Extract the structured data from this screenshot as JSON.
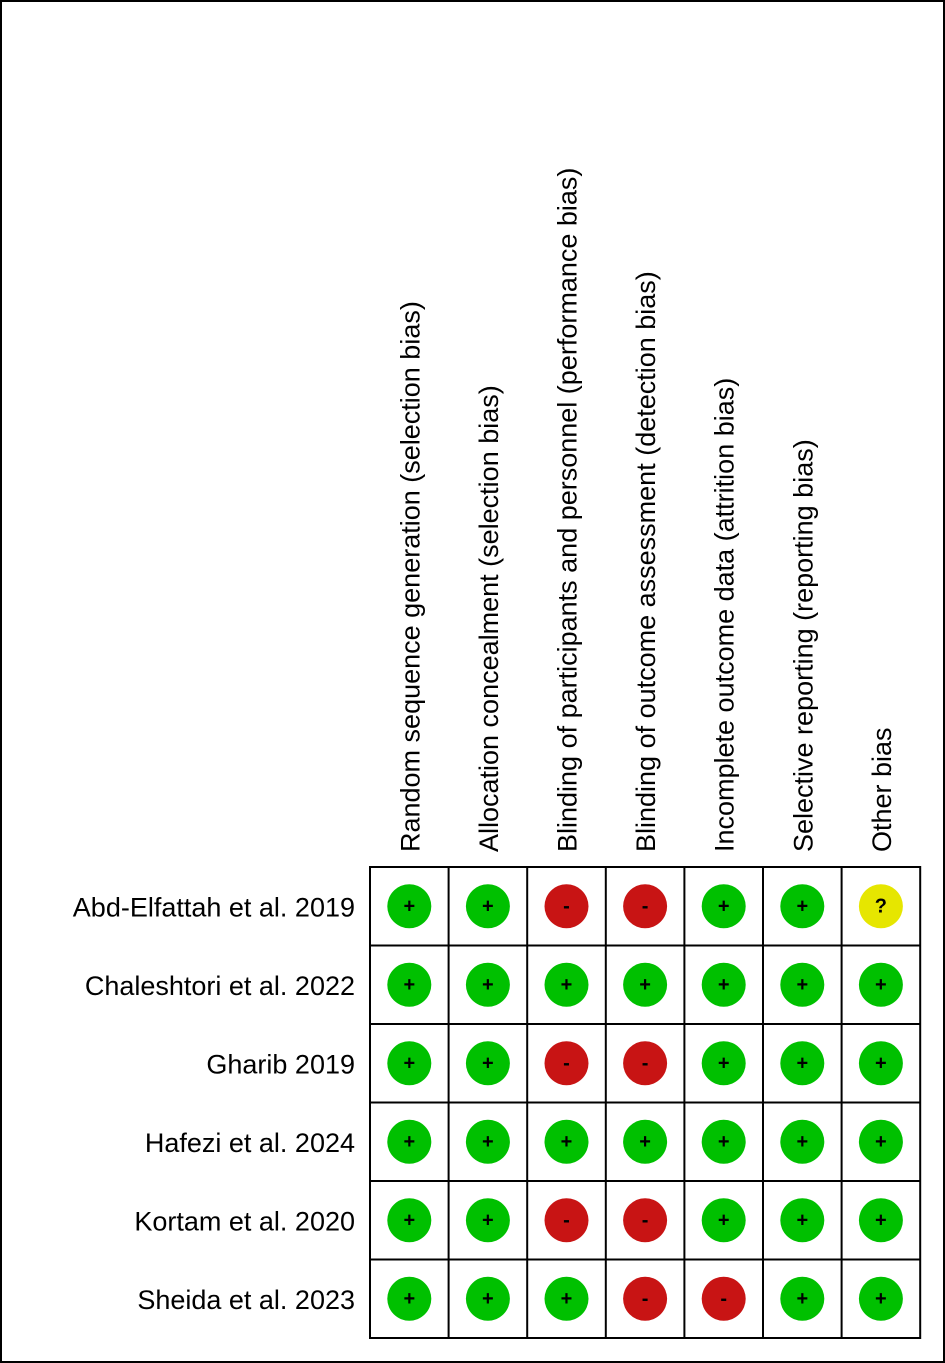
{
  "columns": [
    "Random sequence generation (selection bias)",
    "Allocation concealment (selection bias)",
    "Blinding of participants and personnel (performance bias)",
    "Blinding of outcome assessment (detection bias)",
    "Incomplete outcome data (attrition bias)",
    "Selective reporting (reporting bias)",
    "Other bias"
  ],
  "rows": [
    {
      "study": "Abd-Elfattah et al. 2019",
      "cells": [
        "+",
        "+",
        "-",
        "-",
        "+",
        "+",
        "?"
      ]
    },
    {
      "study": "Chaleshtori et al. 2022",
      "cells": [
        "+",
        "+",
        "+",
        "+",
        "+",
        "+",
        "+"
      ]
    },
    {
      "study": "Gharib 2019",
      "cells": [
        "+",
        "+",
        "-",
        "-",
        "+",
        "+",
        "+"
      ]
    },
    {
      "study": "Hafezi et al. 2024",
      "cells": [
        "+",
        "+",
        "+",
        "+",
        "+",
        "+",
        "+"
      ]
    },
    {
      "study": "Kortam et al. 2020",
      "cells": [
        "+",
        "+",
        "-",
        "-",
        "+",
        "+",
        "+"
      ]
    },
    {
      "study": "Sheida et al. 2023",
      "cells": [
        "+",
        "+",
        "+",
        "-",
        "-",
        "+",
        "+"
      ]
    }
  ],
  "colors": {
    "+": "#00c000",
    "-": "#c81414",
    "?": "#e6e600"
  }
}
